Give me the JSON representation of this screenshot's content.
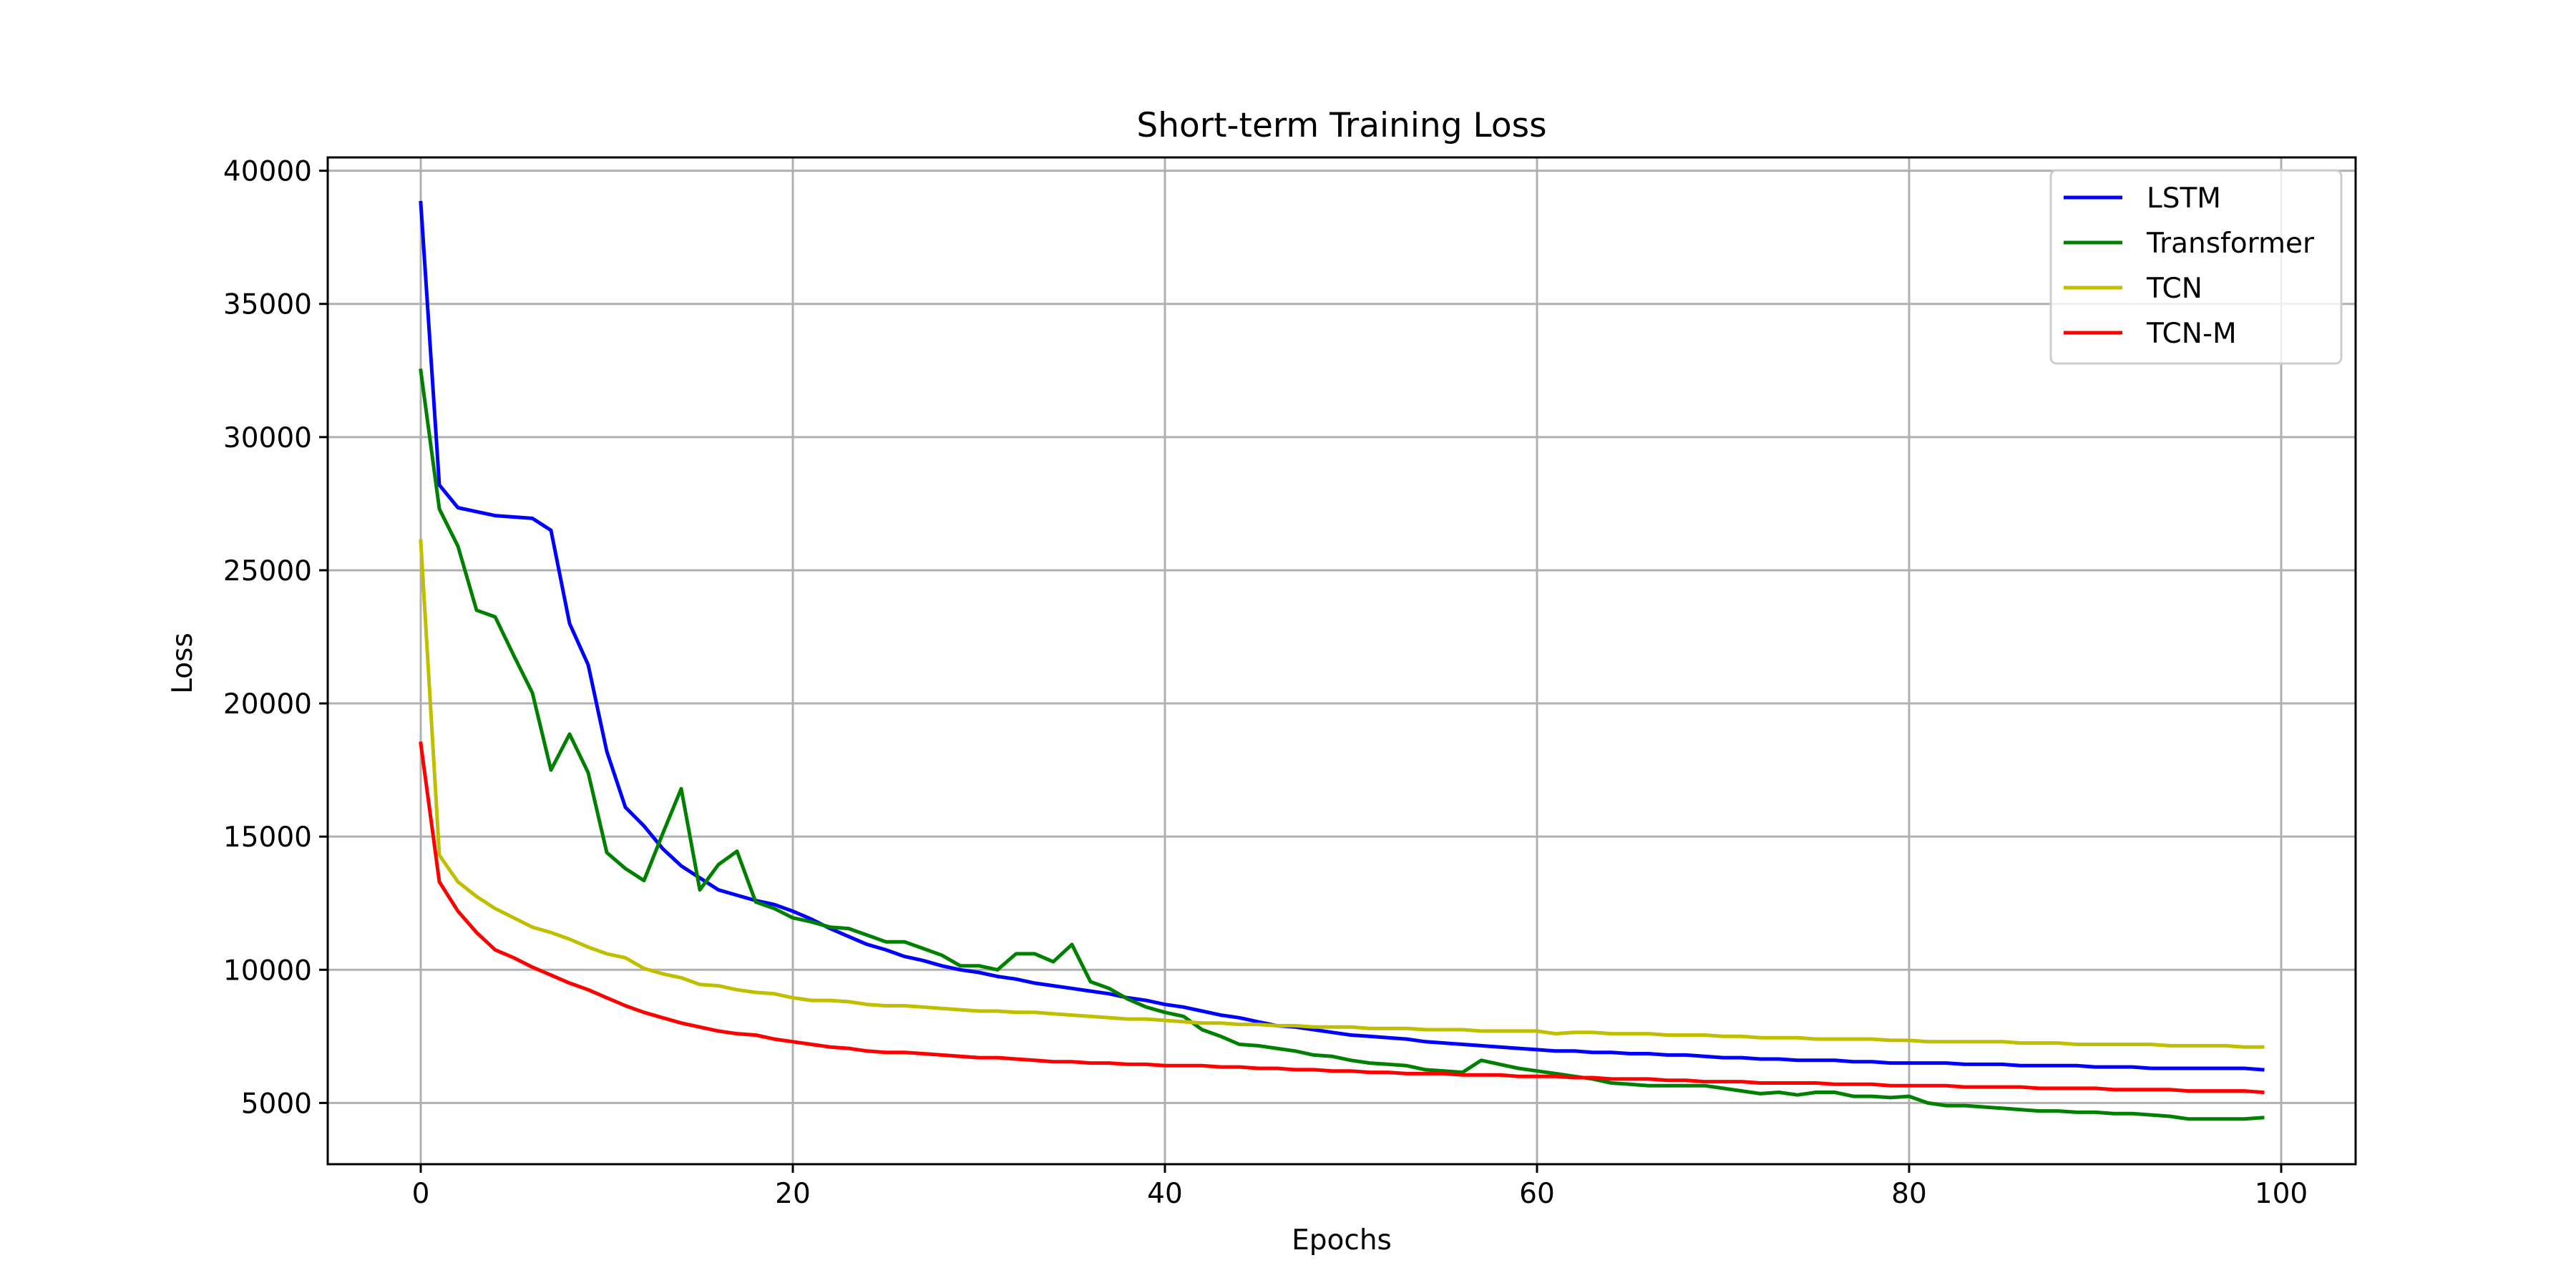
{
  "chart_data": {
    "type": "line",
    "title": "Short-term Training Loss",
    "xlabel": "Epochs",
    "ylabel": "Loss",
    "xlim": [
      -5,
      104
    ],
    "ylim": [
      2700,
      40500
    ],
    "xticks": [
      0,
      20,
      40,
      60,
      80,
      100
    ],
    "yticks": [
      5000,
      10000,
      15000,
      20000,
      25000,
      30000,
      35000,
      40000
    ],
    "xtick_labels": [
      "0",
      "20",
      "40",
      "60",
      "80",
      "100"
    ],
    "ytick_labels": [
      "5000",
      "10000",
      "15000",
      "20000",
      "25000",
      "30000",
      "35000",
      "40000"
    ],
    "grid": true,
    "legend_position": "top-right",
    "series": [
      {
        "name": "LSTM",
        "color": "#0000ff",
        "x": [
          0,
          1,
          2,
          3,
          4,
          5,
          6,
          7,
          8,
          9,
          10,
          11,
          12,
          13,
          14,
          15,
          16,
          17,
          18,
          19,
          20,
          21,
          22,
          23,
          24,
          25,
          26,
          27,
          28,
          29,
          30,
          31,
          32,
          33,
          34,
          35,
          36,
          37,
          38,
          39,
          40,
          41,
          42,
          43,
          44,
          45,
          46,
          47,
          48,
          49,
          50,
          51,
          52,
          53,
          54,
          55,
          56,
          57,
          58,
          59,
          60,
          61,
          62,
          63,
          64,
          65,
          66,
          67,
          68,
          69,
          70,
          71,
          72,
          73,
          74,
          75,
          76,
          77,
          78,
          79,
          80,
          81,
          82,
          83,
          84,
          85,
          86,
          87,
          88,
          89,
          90,
          91,
          92,
          93,
          94,
          95,
          96,
          97,
          98,
          99
        ],
        "values": [
          38800,
          28200,
          27350,
          27200,
          27050,
          27000,
          26950,
          26500,
          23000,
          21450,
          18200,
          16100,
          15400,
          14550,
          13900,
          13450,
          13000,
          12800,
          12600,
          12450,
          12200,
          11900,
          11550,
          11250,
          10950,
          10750,
          10500,
          10350,
          10150,
          10000,
          9900,
          9750,
          9650,
          9500,
          9400,
          9300,
          9200,
          9100,
          8950,
          8850,
          8700,
          8600,
          8450,
          8300,
          8200,
          8050,
          7900,
          7850,
          7750,
          7650,
          7550,
          7500,
          7450,
          7400,
          7300,
          7250,
          7200,
          7150,
          7100,
          7050,
          7000,
          6950,
          6950,
          6900,
          6900,
          6850,
          6850,
          6800,
          6800,
          6750,
          6700,
          6700,
          6650,
          6650,
          6600,
          6600,
          6600,
          6550,
          6550,
          6500,
          6500,
          6500,
          6500,
          6450,
          6450,
          6450,
          6400,
          6400,
          6400,
          6400,
          6350,
          6350,
          6350,
          6300,
          6300,
          6300,
          6300,
          6300,
          6300,
          6250
        ]
      },
      {
        "name": "Transformer",
        "color": "#008000",
        "x": [
          0,
          1,
          2,
          3,
          4,
          5,
          6,
          7,
          8,
          9,
          10,
          11,
          12,
          13,
          14,
          15,
          16,
          17,
          18,
          19,
          20,
          21,
          22,
          23,
          24,
          25,
          26,
          27,
          28,
          29,
          30,
          31,
          32,
          33,
          34,
          35,
          36,
          37,
          38,
          39,
          40,
          41,
          42,
          43,
          44,
          45,
          46,
          47,
          48,
          49,
          50,
          51,
          52,
          53,
          54,
          55,
          56,
          57,
          58,
          59,
          60,
          61,
          62,
          63,
          64,
          65,
          66,
          67,
          68,
          69,
          70,
          71,
          72,
          73,
          74,
          75,
          76,
          77,
          78,
          79,
          80,
          81,
          82,
          83,
          84,
          85,
          86,
          87,
          88,
          89,
          90,
          91,
          92,
          93,
          94,
          95,
          96,
          97,
          98,
          99
        ],
        "values": [
          32500,
          27300,
          25900,
          23500,
          23250,
          21800,
          20400,
          17500,
          18850,
          17400,
          14400,
          13800,
          13350,
          15100,
          16800,
          13000,
          13950,
          14450,
          12550,
          12300,
          11950,
          11800,
          11600,
          11550,
          11300,
          11050,
          11050,
          10800,
          10550,
          10150,
          10150,
          10000,
          10600,
          10600,
          10300,
          10950,
          9550,
          9300,
          8900,
          8600,
          8400,
          8250,
          7750,
          7500,
          7200,
          7150,
          7050,
          6950,
          6800,
          6750,
          6600,
          6500,
          6450,
          6400,
          6250,
          6200,
          6150,
          6600,
          6450,
          6300,
          6200,
          6100,
          6000,
          5900,
          5750,
          5700,
          5650,
          5650,
          5650,
          5650,
          5550,
          5450,
          5350,
          5400,
          5300,
          5400,
          5400,
          5250,
          5250,
          5200,
          5250,
          5000,
          4900,
          4900,
          4850,
          4800,
          4750,
          4700,
          4700,
          4650,
          4650,
          4600,
          4600,
          4550,
          4500,
          4400,
          4400,
          4400,
          4400,
          4450
        ]
      },
      {
        "name": "TCN",
        "color": "#bfbf00",
        "x": [
          0,
          1,
          2,
          3,
          4,
          5,
          6,
          7,
          8,
          9,
          10,
          11,
          12,
          13,
          14,
          15,
          16,
          17,
          18,
          19,
          20,
          21,
          22,
          23,
          24,
          25,
          26,
          27,
          28,
          29,
          30,
          31,
          32,
          33,
          34,
          35,
          36,
          37,
          38,
          39,
          40,
          41,
          42,
          43,
          44,
          45,
          46,
          47,
          48,
          49,
          50,
          51,
          52,
          53,
          54,
          55,
          56,
          57,
          58,
          59,
          60,
          61,
          62,
          63,
          64,
          65,
          66,
          67,
          68,
          69,
          70,
          71,
          72,
          73,
          74,
          75,
          76,
          77,
          78,
          79,
          80,
          81,
          82,
          83,
          84,
          85,
          86,
          87,
          88,
          89,
          90,
          91,
          92,
          93,
          94,
          95,
          96,
          97,
          98,
          99
        ],
        "values": [
          26100,
          14300,
          13300,
          12750,
          12300,
          11950,
          11600,
          11400,
          11150,
          10850,
          10600,
          10450,
          10050,
          9850,
          9700,
          9450,
          9400,
          9250,
          9150,
          9100,
          8950,
          8850,
          8850,
          8800,
          8700,
          8650,
          8650,
          8600,
          8550,
          8500,
          8450,
          8450,
          8400,
          8400,
          8350,
          8300,
          8250,
          8200,
          8150,
          8150,
          8100,
          8050,
          8000,
          8000,
          7950,
          7950,
          7900,
          7900,
          7850,
          7850,
          7850,
          7800,
          7800,
          7800,
          7750,
          7750,
          7750,
          7700,
          7700,
          7700,
          7700,
          7600,
          7650,
          7650,
          7600,
          7600,
          7600,
          7550,
          7550,
          7550,
          7500,
          7500,
          7450,
          7450,
          7450,
          7400,
          7400,
          7400,
          7400,
          7350,
          7350,
          7300,
          7300,
          7300,
          7300,
          7300,
          7250,
          7250,
          7250,
          7200,
          7200,
          7200,
          7200,
          7200,
          7150,
          7150,
          7150,
          7150,
          7100,
          7100
        ]
      },
      {
        "name": "TCN-M",
        "color": "#ff0000",
        "x": [
          0,
          1,
          2,
          3,
          4,
          5,
          6,
          7,
          8,
          9,
          10,
          11,
          12,
          13,
          14,
          15,
          16,
          17,
          18,
          19,
          20,
          21,
          22,
          23,
          24,
          25,
          26,
          27,
          28,
          29,
          30,
          31,
          32,
          33,
          34,
          35,
          36,
          37,
          38,
          39,
          40,
          41,
          42,
          43,
          44,
          45,
          46,
          47,
          48,
          49,
          50,
          51,
          52,
          53,
          54,
          55,
          56,
          57,
          58,
          59,
          60,
          61,
          62,
          63,
          64,
          65,
          66,
          67,
          68,
          69,
          70,
          71,
          72,
          73,
          74,
          75,
          76,
          77,
          78,
          79,
          80,
          81,
          82,
          83,
          84,
          85,
          86,
          87,
          88,
          89,
          90,
          91,
          92,
          93,
          94,
          95,
          96,
          97,
          98,
          99
        ],
        "values": [
          18500,
          13300,
          12200,
          11400,
          10750,
          10450,
          10100,
          9800,
          9500,
          9250,
          8950,
          8650,
          8400,
          8200,
          8000,
          7850,
          7700,
          7600,
          7550,
          7400,
          7300,
          7200,
          7100,
          7050,
          6950,
          6900,
          6900,
          6850,
          6800,
          6750,
          6700,
          6700,
          6650,
          6600,
          6550,
          6550,
          6500,
          6500,
          6450,
          6450,
          6400,
          6400,
          6400,
          6350,
          6350,
          6300,
          6300,
          6250,
          6250,
          6200,
          6200,
          6150,
          6150,
          6100,
          6100,
          6100,
          6050,
          6050,
          6050,
          6000,
          6000,
          6000,
          5950,
          5950,
          5900,
          5900,
          5900,
          5850,
          5850,
          5800,
          5800,
          5800,
          5750,
          5750,
          5750,
          5750,
          5700,
          5700,
          5700,
          5650,
          5650,
          5650,
          5650,
          5600,
          5600,
          5600,
          5600,
          5550,
          5550,
          5550,
          5550,
          5500,
          5500,
          5500,
          5500,
          5450,
          5450,
          5450,
          5450,
          5400
        ]
      }
    ]
  }
}
